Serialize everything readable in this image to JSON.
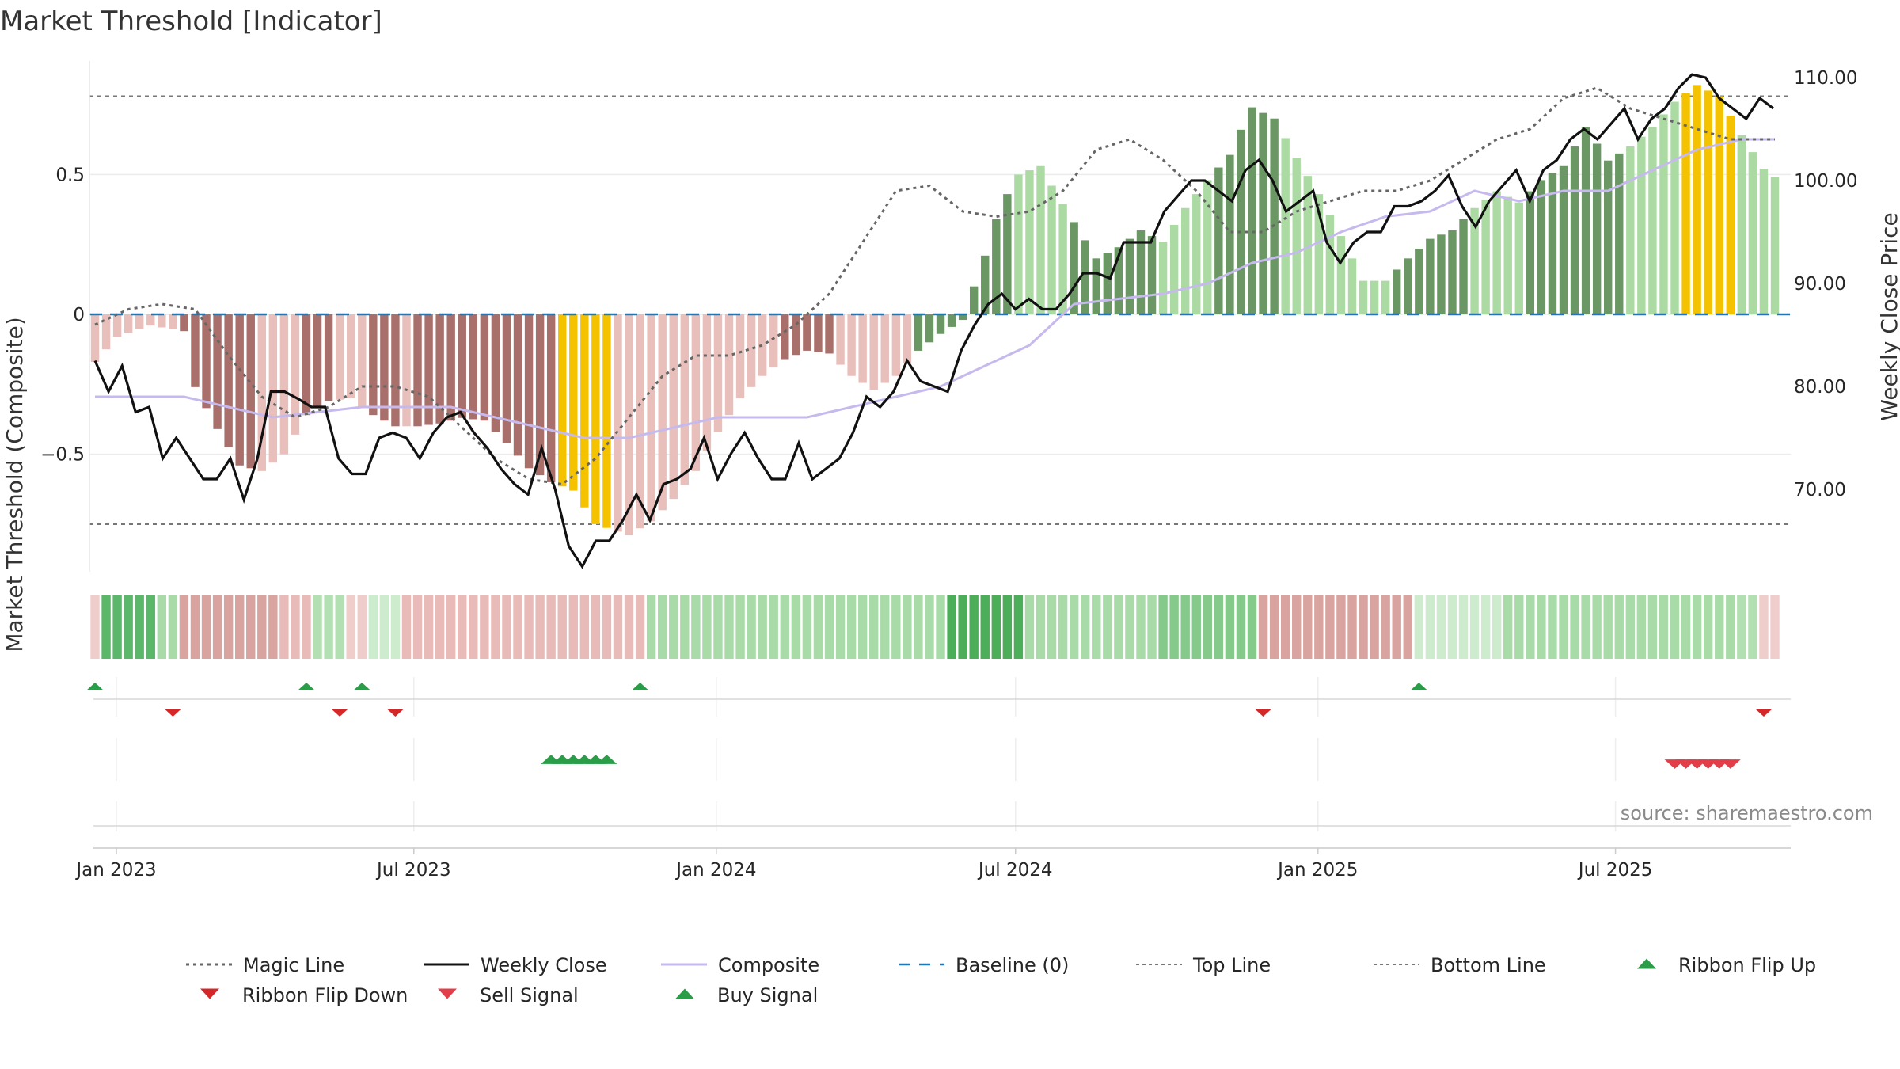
{
  "chart_data": {
    "type": "bar",
    "title": "Market Threshold [Indicator]",
    "ylabel_left": "Market Threshold (Composite)",
    "ylabel_right": "Weekly Close Price",
    "source": "source: sharemaestro.com",
    "ylim_left": [
      -0.92,
      0.92
    ],
    "ylim_right": [
      62,
      112
    ],
    "yticks_left": [
      {
        "value": 0.5,
        "label": "0.5"
      },
      {
        "value": 0,
        "label": "0"
      },
      {
        "value": -0.5,
        "label": "−0.5"
      }
    ],
    "yticks_right": [
      {
        "value": 110,
        "label": "110.00"
      },
      {
        "value": 100,
        "label": "100.00"
      },
      {
        "value": 90,
        "label": "90.00"
      },
      {
        "value": 80,
        "label": "80.00"
      },
      {
        "value": 70,
        "label": "70.00"
      }
    ],
    "x_start": "2022-12-19",
    "x_end": "2025-10-06",
    "xticks": [
      {
        "date": "2023-01-01",
        "label": "Jan 2023"
      },
      {
        "date": "2023-07-01",
        "label": "Jul 2023"
      },
      {
        "date": "2024-01-01",
        "label": "Jan 2024"
      },
      {
        "date": "2024-07-01",
        "label": "Jul 2024"
      },
      {
        "date": "2025-01-01",
        "label": "Jan 2025"
      },
      {
        "date": "2025-07-01",
        "label": "Jul 2025"
      }
    ],
    "top_line": 0.78,
    "bottom_line": -0.75,
    "baseline": 0,
    "composite_anchors": [
      [
        0,
        -0.17
      ],
      [
        2,
        -0.08
      ],
      [
        5,
        -0.04
      ],
      [
        8,
        -0.06
      ],
      [
        9,
        -0.26
      ],
      [
        11,
        -0.41
      ],
      [
        13,
        -0.54
      ],
      [
        15,
        -0.56
      ],
      [
        17,
        -0.5
      ],
      [
        19,
        -0.36
      ],
      [
        21,
        -0.31
      ],
      [
        23,
        -0.3
      ],
      [
        25,
        -0.36
      ],
      [
        27,
        -0.4
      ],
      [
        29,
        -0.4
      ],
      [
        31,
        -0.39
      ],
      [
        33,
        -0.37
      ],
      [
        35,
        -0.38
      ],
      [
        37,
        -0.46
      ],
      [
        39,
        -0.55
      ],
      [
        41,
        -0.6
      ],
      [
        43,
        -0.63
      ],
      [
        45,
        -0.75
      ],
      [
        48,
        -0.79
      ],
      [
        50,
        -0.74
      ],
      [
        52,
        -0.66
      ],
      [
        54,
        -0.56
      ],
      [
        56,
        -0.42
      ],
      [
        58,
        -0.3
      ],
      [
        60,
        -0.22
      ],
      [
        62,
        -0.16
      ],
      [
        64,
        -0.13
      ],
      [
        66,
        -0.14
      ],
      [
        68,
        -0.22
      ],
      [
        70,
        -0.27
      ],
      [
        72,
        -0.22
      ],
      [
        74,
        -0.13
      ],
      [
        76,
        -0.07
      ],
      [
        78,
        -0.02
      ],
      [
        79,
        0.1
      ],
      [
        80,
        0.21
      ],
      [
        81,
        0.34
      ],
      [
        82,
        0.43
      ],
      [
        83,
        0.5
      ],
      [
        85,
        0.53
      ],
      [
        86,
        0.46
      ],
      [
        88,
        0.33
      ],
      [
        90,
        0.2
      ],
      [
        92,
        0.24
      ],
      [
        94,
        0.3
      ],
      [
        96,
        0.26
      ],
      [
        98,
        0.38
      ],
      [
        100,
        0.48
      ],
      [
        102,
        0.57
      ],
      [
        103,
        0.66
      ],
      [
        104,
        0.74
      ],
      [
        106,
        0.7
      ],
      [
        108,
        0.56
      ],
      [
        110,
        0.43
      ],
      [
        112,
        0.28
      ],
      [
        114,
        0.12
      ],
      [
        116,
        0.12
      ],
      [
        118,
        0.2
      ],
      [
        120,
        0.27
      ],
      [
        122,
        0.3
      ],
      [
        124,
        0.38
      ],
      [
        126,
        0.44
      ],
      [
        128,
        0.4
      ],
      [
        130,
        0.48
      ],
      [
        132,
        0.53
      ],
      [
        134,
        0.67
      ],
      [
        136,
        0.55
      ],
      [
        138,
        0.6
      ],
      [
        140,
        0.67
      ],
      [
        142,
        0.76
      ],
      [
        144,
        0.82
      ],
      [
        146,
        0.78
      ],
      [
        148,
        0.64
      ],
      [
        150,
        0.52
      ],
      [
        151,
        0.49
      ]
    ],
    "composite_color_bands": [
      {
        "from": 0,
        "to": 7,
        "color": "#e8bfbb"
      },
      {
        "from": 8,
        "to": 14,
        "color": "#a86f6b"
      },
      {
        "from": 15,
        "to": 18,
        "color": "#e8bfbb"
      },
      {
        "from": 19,
        "to": 21,
        "color": "#a86f6b"
      },
      {
        "from": 22,
        "to": 24,
        "color": "#e8bfbb"
      },
      {
        "from": 25,
        "to": 27,
        "color": "#a86f6b"
      },
      {
        "from": 28,
        "to": 28,
        "color": "#e8bfbb"
      },
      {
        "from": 29,
        "to": 41,
        "color": "#a86f6b"
      },
      {
        "from": 42,
        "to": 46,
        "color": "#f5c200"
      },
      {
        "from": 47,
        "to": 61,
        "color": "#e8bfbb"
      },
      {
        "from": 62,
        "to": 66,
        "color": "#a86f6b"
      },
      {
        "from": 67,
        "to": 73,
        "color": "#e8bfbb"
      },
      {
        "from": 74,
        "to": 82,
        "color": "#6a9763"
      },
      {
        "from": 83,
        "to": 87,
        "color": "#abdba2"
      },
      {
        "from": 88,
        "to": 95,
        "color": "#6a9763"
      },
      {
        "from": 96,
        "to": 100,
        "color": "#abdba2"
      },
      {
        "from": 101,
        "to": 106,
        "color": "#6a9763"
      },
      {
        "from": 107,
        "to": 112,
        "color": "#abdba2"
      },
      {
        "from": 113,
        "to": 116,
        "color": "#abdba2"
      },
      {
        "from": 117,
        "to": 123,
        "color": "#6a9763"
      },
      {
        "from": 124,
        "to": 128,
        "color": "#abdba2"
      },
      {
        "from": 129,
        "to": 137,
        "color": "#6a9763"
      },
      {
        "from": 138,
        "to": 142,
        "color": "#abdba2"
      },
      {
        "from": 143,
        "to": 147,
        "color": "#f5c200"
      },
      {
        "from": 148,
        "to": 151,
        "color": "#abdba2"
      }
    ],
    "weekly_close_anchors": [
      [
        0,
        82.5
      ],
      [
        1,
        79.5
      ],
      [
        2,
        82
      ],
      [
        3,
        77.5
      ],
      [
        4,
        78
      ],
      [
        5,
        73
      ],
      [
        6,
        75
      ],
      [
        7,
        73
      ],
      [
        8,
        71
      ],
      [
        9,
        71
      ],
      [
        10,
        73
      ],
      [
        11,
        69
      ],
      [
        12,
        73
      ],
      [
        13,
        79.5
      ],
      [
        14,
        79.5
      ],
      [
        15,
        78.8
      ],
      [
        16,
        78
      ],
      [
        17,
        78
      ],
      [
        18,
        73
      ],
      [
        19,
        71.5
      ],
      [
        20,
        71.5
      ],
      [
        21,
        75
      ],
      [
        22,
        75.5
      ],
      [
        23,
        75
      ],
      [
        24,
        73
      ],
      [
        25,
        75.5
      ],
      [
        26,
        77
      ],
      [
        27,
        77.5
      ],
      [
        28,
        75.5
      ],
      [
        29,
        74
      ],
      [
        30,
        72
      ],
      [
        31,
        70.5
      ],
      [
        32,
        69.5
      ],
      [
        33,
        74
      ],
      [
        34,
        70
      ],
      [
        35,
        64.5
      ],
      [
        36,
        62.5
      ],
      [
        37,
        65
      ],
      [
        38,
        65
      ],
      [
        39,
        67
      ],
      [
        40,
        69.5
      ],
      [
        41,
        67
      ],
      [
        42,
        70.5
      ],
      [
        43,
        71
      ],
      [
        44,
        72
      ],
      [
        45,
        75
      ],
      [
        46,
        71
      ],
      [
        47,
        73.5
      ],
      [
        48,
        75.5
      ],
      [
        49,
        73
      ],
      [
        50,
        71
      ],
      [
        51,
        71
      ],
      [
        52,
        74.5
      ],
      [
        53,
        71
      ],
      [
        54,
        72
      ],
      [
        55,
        73
      ],
      [
        56,
        75.5
      ],
      [
        57,
        79
      ],
      [
        58,
        78
      ],
      [
        59,
        79.5
      ],
      [
        60,
        82.5
      ],
      [
        61,
        80.5
      ],
      [
        62,
        80
      ],
      [
        63,
        79.5
      ],
      [
        64,
        83.5
      ],
      [
        65,
        86
      ],
      [
        66,
        88
      ],
      [
        67,
        89
      ],
      [
        68,
        87.5
      ],
      [
        69,
        88.5
      ],
      [
        70,
        87.5
      ],
      [
        71,
        87.5
      ],
      [
        72,
        89
      ],
      [
        73,
        91
      ],
      [
        74,
        91
      ],
      [
        75,
        90.5
      ],
      [
        76,
        94
      ],
      [
        77,
        94
      ],
      [
        78,
        94
      ],
      [
        79,
        97
      ],
      [
        80,
        98.5
      ],
      [
        81,
        100
      ],
      [
        82,
        100
      ],
      [
        83,
        99
      ],
      [
        84,
        98
      ],
      [
        85,
        101
      ],
      [
        86,
        102
      ],
      [
        87,
        100
      ],
      [
        88,
        97
      ],
      [
        89,
        98
      ],
      [
        90,
        99
      ],
      [
        91,
        94
      ],
      [
        92,
        92
      ],
      [
        93,
        94
      ],
      [
        94,
        95
      ],
      [
        95,
        95
      ],
      [
        96,
        97.5
      ],
      [
        97,
        97.5
      ],
      [
        98,
        98
      ],
      [
        99,
        99
      ],
      [
        100,
        100.5
      ],
      [
        101,
        97.5
      ],
      [
        102,
        95.5
      ],
      [
        103,
        98
      ],
      [
        104,
        99.5
      ],
      [
        105,
        101
      ],
      [
        106,
        98
      ],
      [
        107,
        101
      ],
      [
        108,
        102
      ],
      [
        109,
        104
      ],
      [
        110,
        105
      ],
      [
        111,
        104
      ],
      [
        112,
        105.5
      ],
      [
        113,
        107
      ],
      [
        114,
        104
      ],
      [
        115,
        106
      ],
      [
        116,
        107
      ],
      [
        117,
        109
      ],
      [
        118,
        110.3
      ],
      [
        119,
        110
      ],
      [
        120,
        108
      ],
      [
        121,
        107
      ],
      [
        122,
        106
      ],
      [
        123,
        108
      ],
      [
        124,
        107
      ]
    ],
    "weekly_close_index_scale": 1.2166,
    "composite_line": [
      [
        0,
        79
      ],
      [
        8,
        79
      ],
      [
        16,
        77
      ],
      [
        24,
        78
      ],
      [
        32,
        78
      ],
      [
        36,
        77
      ],
      [
        40,
        76
      ],
      [
        44,
        75
      ],
      [
        48,
        75
      ],
      [
        52,
        76
      ],
      [
        56,
        77
      ],
      [
        60,
        77
      ],
      [
        64,
        77
      ],
      [
        68,
        78
      ],
      [
        72,
        79
      ],
      [
        76,
        80
      ],
      [
        80,
        82
      ],
      [
        84,
        84
      ],
      [
        88,
        88
      ],
      [
        92,
        88.5
      ],
      [
        96,
        89
      ],
      [
        100,
        90
      ],
      [
        104,
        92
      ],
      [
        108,
        93
      ],
      [
        112,
        95
      ],
      [
        116,
        96.5
      ],
      [
        120,
        97
      ],
      [
        124,
        99
      ],
      [
        128,
        98
      ],
      [
        132,
        99
      ],
      [
        136,
        99
      ],
      [
        140,
        101
      ],
      [
        144,
        103
      ],
      [
        148,
        104
      ],
      [
        151,
        104
      ]
    ],
    "magic_line": [
      [
        0,
        86
      ],
      [
        3,
        87.5
      ],
      [
        6,
        88
      ],
      [
        9,
        87.5
      ],
      [
        12,
        83
      ],
      [
        15,
        79
      ],
      [
        18,
        77
      ],
      [
        21,
        78
      ],
      [
        24,
        80
      ],
      [
        27,
        80
      ],
      [
        30,
        79
      ],
      [
        33,
        76
      ],
      [
        36,
        73
      ],
      [
        39,
        71
      ],
      [
        42,
        70.5
      ],
      [
        45,
        73
      ],
      [
        48,
        77
      ],
      [
        51,
        81
      ],
      [
        54,
        83
      ],
      [
        57,
        83
      ],
      [
        60,
        84
      ],
      [
        63,
        86
      ],
      [
        66,
        89
      ],
      [
        69,
        94
      ],
      [
        72,
        99
      ],
      [
        75,
        99.5
      ],
      [
        78,
        97
      ],
      [
        81,
        96.5
      ],
      [
        84,
        97
      ],
      [
        87,
        99
      ],
      [
        90,
        103
      ],
      [
        93,
        104
      ],
      [
        96,
        102
      ],
      [
        99,
        99
      ],
      [
        102,
        95
      ],
      [
        105,
        95
      ],
      [
        108,
        97
      ],
      [
        111,
        98
      ],
      [
        114,
        99
      ],
      [
        117,
        99
      ],
      [
        120,
        100
      ],
      [
        123,
        102
      ],
      [
        126,
        104
      ],
      [
        129,
        105
      ],
      [
        132,
        108
      ],
      [
        135,
        109
      ],
      [
        138,
        107
      ],
      [
        141,
        106
      ],
      [
        144,
        105
      ],
      [
        147,
        104
      ],
      [
        151,
        104
      ]
    ],
    "ribbon": [
      {
        "from": 0,
        "to": 0,
        "color": "#efcdca"
      },
      {
        "from": 1,
        "to": 5,
        "color": "#5bb86a"
      },
      {
        "from": 6,
        "to": 7,
        "color": "#a9dba9"
      },
      {
        "from": 8,
        "to": 16,
        "color": "#d9a3a0"
      },
      {
        "from": 17,
        "to": 19,
        "color": "#e9bbb8"
      },
      {
        "from": 20,
        "to": 22,
        "color": "#b3e0b3"
      },
      {
        "from": 23,
        "to": 24,
        "color": "#efcdca"
      },
      {
        "from": 25,
        "to": 27,
        "color": "#cdebcd"
      },
      {
        "from": 28,
        "to": 49,
        "color": "#e9bbb8"
      },
      {
        "from": 50,
        "to": 76,
        "color": "#a9dba9"
      },
      {
        "from": 77,
        "to": 83,
        "color": "#4cae58"
      },
      {
        "from": 84,
        "to": 95,
        "color": "#a9dba9"
      },
      {
        "from": 96,
        "to": 104,
        "color": "#85c98b"
      },
      {
        "from": 105,
        "to": 118,
        "color": "#d9a3a0"
      },
      {
        "from": 119,
        "to": 126,
        "color": "#cdebcd"
      },
      {
        "from": 127,
        "to": 147,
        "color": "#a9dba9"
      },
      {
        "from": 148,
        "to": 149,
        "color": "#b3e0b3"
      },
      {
        "from": 150,
        "to": 151,
        "color": "#efcdca"
      }
    ],
    "ribbon_flip_up": [
      0,
      19,
      24,
      49,
      119
    ],
    "ribbon_flip_down": [
      7,
      22,
      27,
      105,
      150
    ],
    "buy_signals": [
      41,
      42,
      43,
      44,
      45,
      46
    ],
    "sell_signals": [
      142,
      143,
      144,
      145,
      146,
      147
    ],
    "colors": {
      "magic_line": "#666666",
      "weekly_close": "#111111",
      "composite": "#c6b9ee",
      "baseline": "#1f77b4",
      "flip_up": "#2a9d48",
      "flip_down": "#d62728",
      "sell": "#e23d48",
      "buy": "#2a9d48"
    },
    "legend": [
      {
        "label": "Magic Line",
        "kind": "dotted",
        "color": "#666666"
      },
      {
        "label": "Weekly Close",
        "kind": "solid",
        "color": "#111111"
      },
      {
        "label": "Composite",
        "kind": "solid",
        "color": "#c6b9ee"
      },
      {
        "label": "Baseline (0)",
        "kind": "dashed",
        "color": "#1f77b4"
      },
      {
        "label": "Top Line",
        "kind": "dotted-thin",
        "color": "#777777"
      },
      {
        "label": "Bottom Line",
        "kind": "dotted-thin",
        "color": "#777777"
      },
      {
        "label": "Ribbon Flip Up",
        "kind": "tri-up",
        "color": "#2a9d48"
      },
      {
        "label": "Ribbon Flip Down",
        "kind": "tri-down",
        "color": "#d62728"
      },
      {
        "label": "Sell Signal",
        "kind": "tri-down",
        "color": "#e23d48"
      },
      {
        "label": "Buy Signal",
        "kind": "tri-up",
        "color": "#2a9d48"
      }
    ]
  }
}
